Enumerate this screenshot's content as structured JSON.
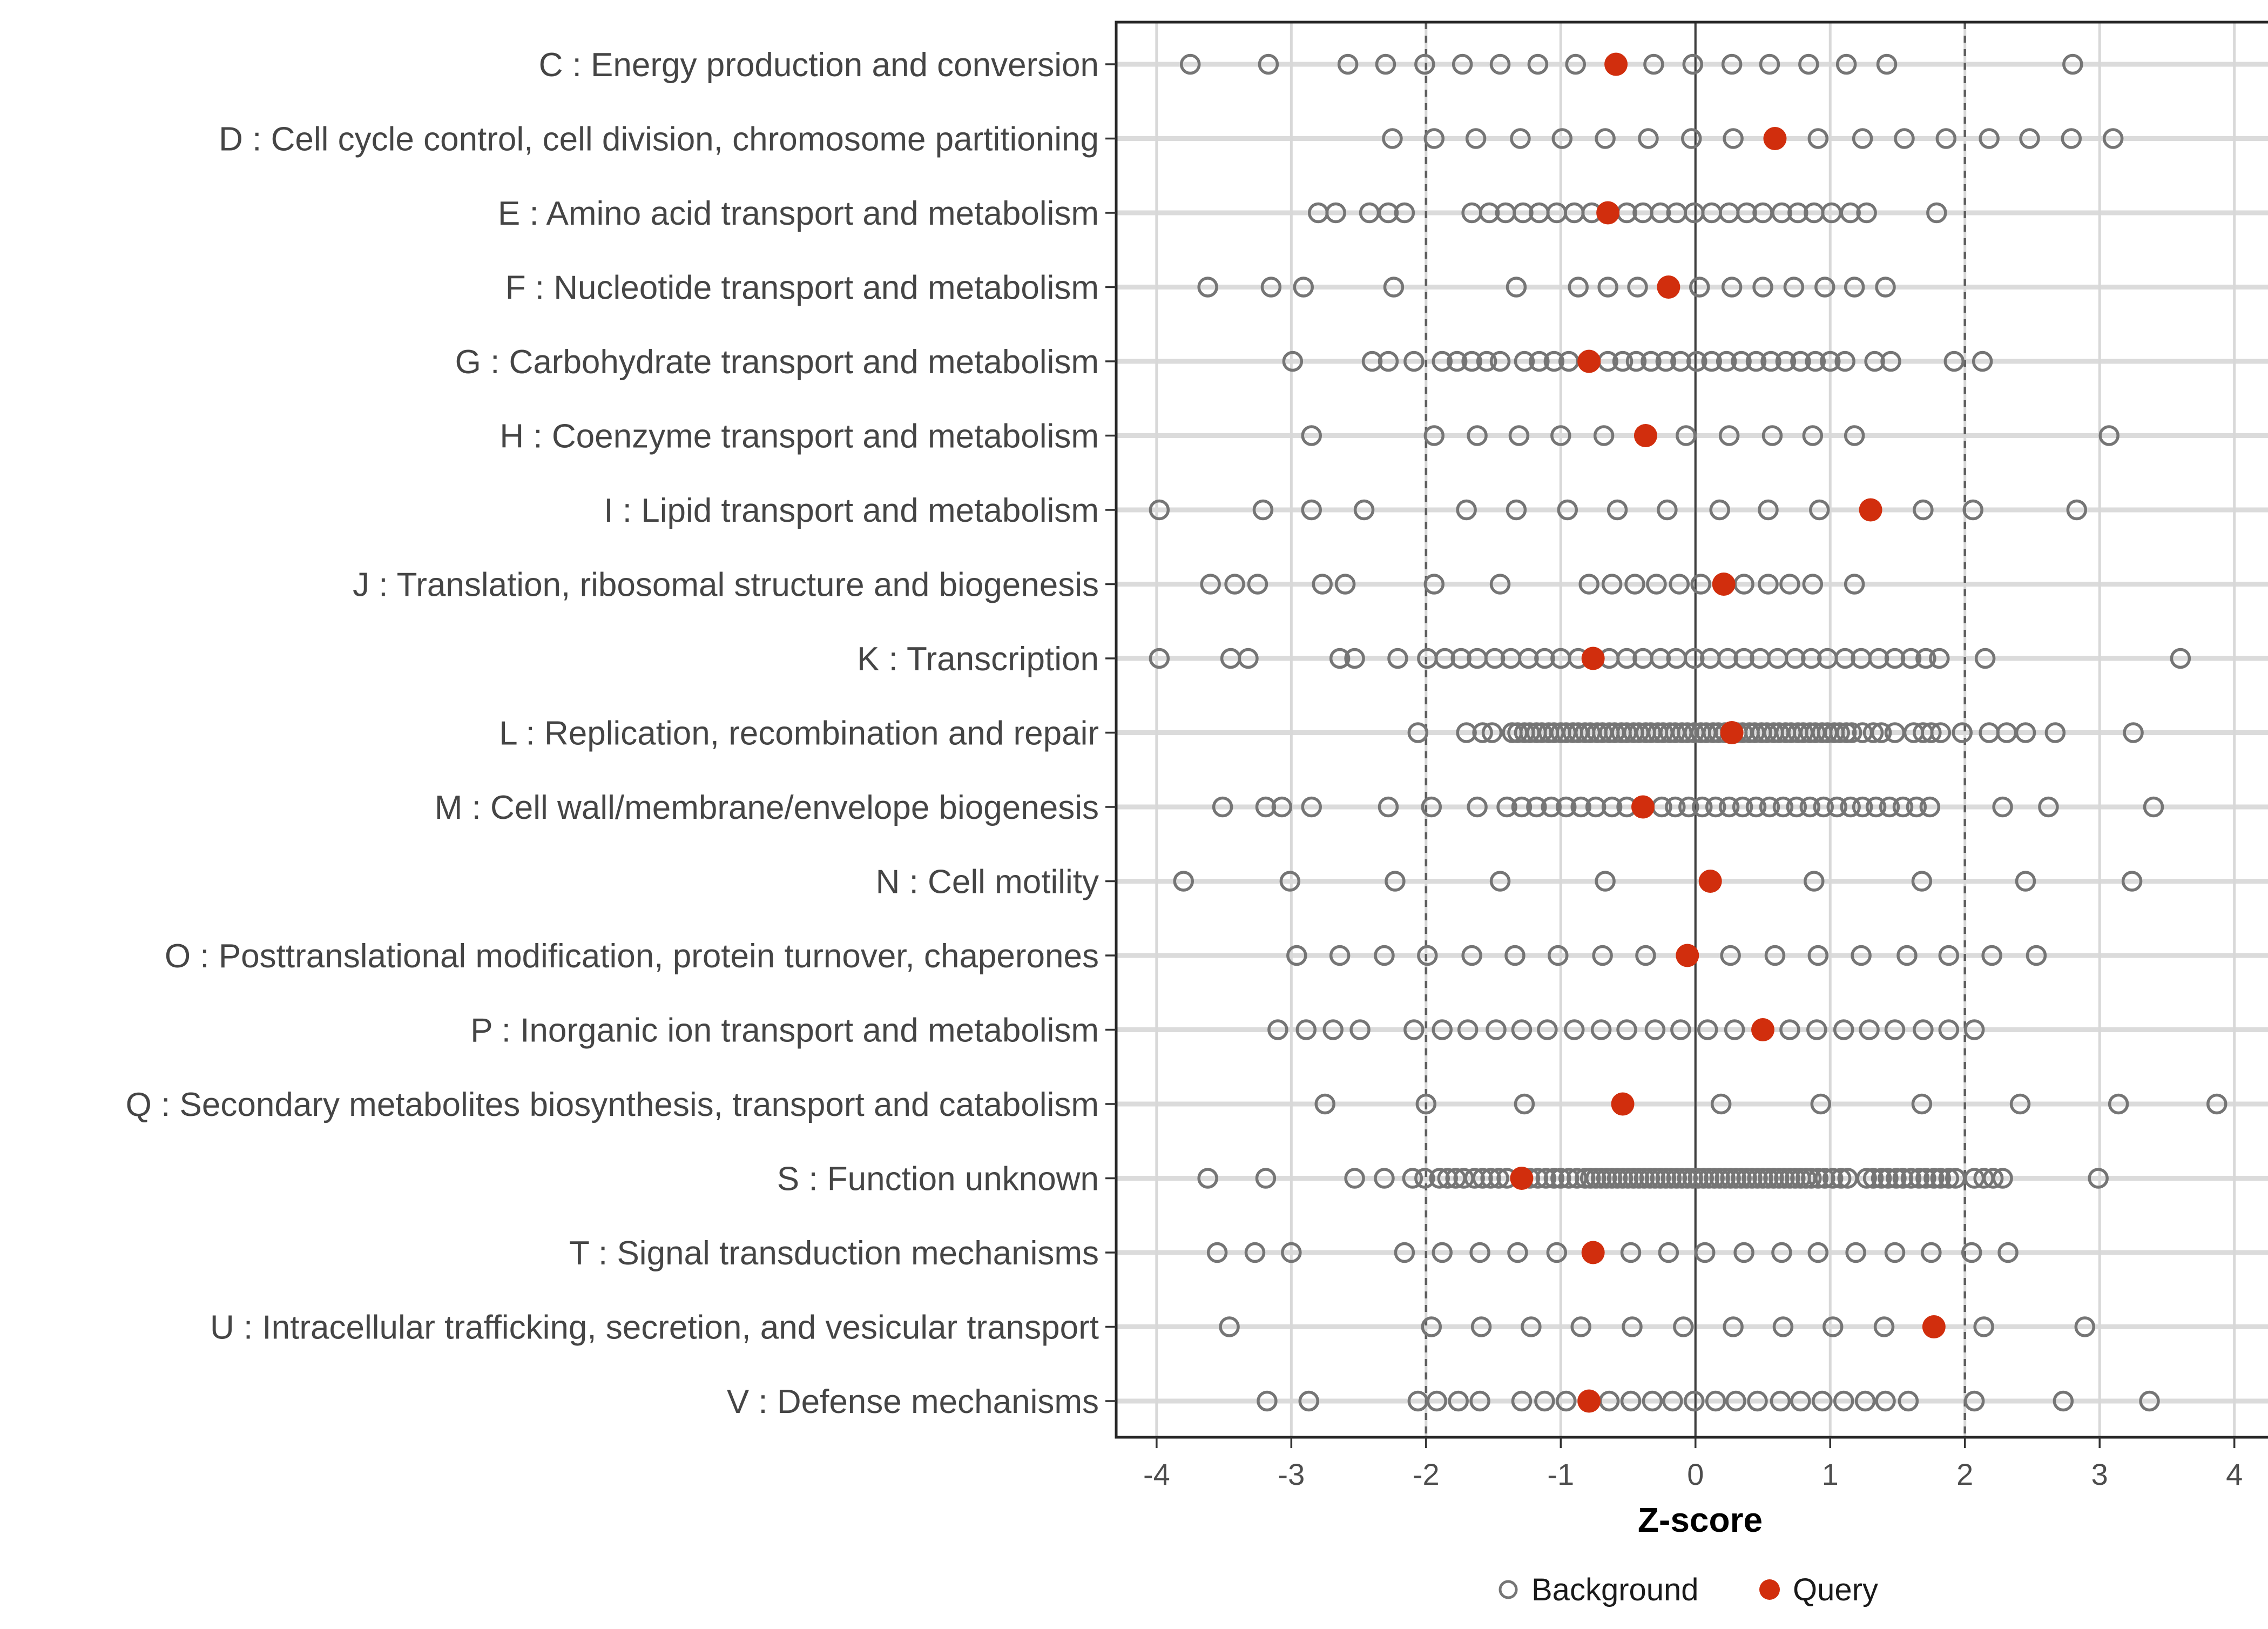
{
  "figure_title": "",
  "axes": {
    "title": "Z-score",
    "x_ticks": [
      -4,
      -3,
      -2,
      -1,
      0,
      1,
      2,
      3,
      4
    ],
    "x_tick_labels": [
      "-4",
      "-3",
      "-2",
      "-1",
      "0",
      "1",
      "2",
      "3",
      "4"
    ],
    "x_range": [
      -4.3,
      4.37
    ],
    "zero_line": 0,
    "dashed_lines": [
      -2,
      2
    ],
    "grid": "on"
  },
  "legend": {
    "position": "bottom",
    "items": [
      {
        "label": "Background",
        "marker": "open-circle",
        "color": "#757575"
      },
      {
        "label": "Query",
        "marker": "filled-circle",
        "color": "#D12E0D"
      }
    ]
  },
  "colors": {
    "query": "#D12E0D",
    "background_stroke": "#757575",
    "row_gridline": "#DBDBDB",
    "x_gridline": "#D8D8D8",
    "dashed_line": "#5F5F5F",
    "zero_line": "#3F3F3F",
    "panel_border": "#262626",
    "tick_mark": "#333333",
    "axis_text": "#4D4D4D",
    "category_text": "#454545",
    "title_text": "#000000",
    "legend_text": "#1A1A1A"
  },
  "chart_data": {
    "type": "scatter",
    "subtype": "horizontal-strip-dotplot",
    "xlabel": "Z-score",
    "ylabel": "",
    "xlim": [
      -4.3,
      4.37
    ],
    "legend_position": "bottom",
    "series_names": [
      "Background",
      "Query"
    ],
    "rows": [
      {
        "label": "C : Energy production and conversion",
        "query": -0.59,
        "background": [
          -3.75,
          -3.17,
          -2.58,
          -2.3,
          -2.01,
          -1.73,
          -1.45,
          -1.17,
          -0.89,
          -0.31,
          -0.02,
          0.27,
          0.55,
          0.84,
          1.12,
          1.42,
          2.8
        ]
      },
      {
        "label": "D : Cell cycle control, cell division, chromosome partitioning",
        "query": 0.59,
        "background": [
          -2.25,
          -1.94,
          -1.63,
          -1.3,
          -0.99,
          -0.67,
          -0.35,
          -0.03,
          0.28,
          0.91,
          1.24,
          1.55,
          1.86,
          2.18,
          2.48,
          2.79,
          3.1
        ]
      },
      {
        "label": "E : Amino acid transport and metabolism",
        "query": -0.65,
        "background": [
          -2.8,
          -2.67,
          -2.42,
          -2.28,
          -2.16,
          -1.66,
          -1.53,
          -1.41,
          -1.28,
          -1.16,
          -1.03,
          -0.9,
          -0.77,
          -0.51,
          -0.39,
          -0.26,
          -0.14,
          -0.01,
          0.12,
          0.25,
          0.38,
          0.5,
          0.64,
          0.76,
          0.88,
          1.01,
          1.15,
          1.27,
          1.79
        ]
      },
      {
        "label": "F : Nucleotide transport and metabolism",
        "query": -0.2,
        "background": [
          -3.62,
          -3.15,
          -2.91,
          -2.24,
          -1.33,
          -0.87,
          -0.65,
          -0.43,
          0.03,
          0.27,
          0.5,
          0.73,
          0.96,
          1.18,
          1.41
        ]
      },
      {
        "label": "G : Carbohydrate transport and metabolism",
        "query": -0.79,
        "background": [
          -2.99,
          -2.4,
          -2.28,
          -2.09,
          -1.88,
          -1.77,
          -1.66,
          -1.55,
          -1.45,
          -1.27,
          -1.16,
          -1.05,
          -0.94,
          -0.65,
          -0.54,
          -0.44,
          -0.33,
          -0.22,
          -0.11,
          0.01,
          0.12,
          0.23,
          0.34,
          0.45,
          0.56,
          0.67,
          0.78,
          0.89,
          1.0,
          1.11,
          1.33,
          1.45,
          1.92,
          2.13
        ]
      },
      {
        "label": "H : Coenzyme transport and metabolism",
        "query": -0.37,
        "background": [
          -2.85,
          -1.94,
          -1.62,
          -1.31,
          -1.0,
          -0.68,
          -0.07,
          0.25,
          0.57,
          0.87,
          1.18,
          3.07
        ]
      },
      {
        "label": "I : Lipid transport and metabolism",
        "query": 1.3,
        "background": [
          -3.98,
          -3.21,
          -2.85,
          -2.46,
          -1.7,
          -1.33,
          -0.95,
          -0.58,
          -0.21,
          0.18,
          0.54,
          0.92,
          1.69,
          2.06,
          2.83
        ]
      },
      {
        "label": "J : Translation, ribosomal structure and biogenesis",
        "query": 0.21,
        "background": [
          -3.6,
          -3.42,
          -3.25,
          -2.77,
          -2.6,
          -1.94,
          -1.45,
          -0.79,
          -0.62,
          -0.45,
          -0.29,
          -0.12,
          0.04,
          0.36,
          0.54,
          0.7,
          0.87,
          1.18
        ]
      },
      {
        "label": "K : Transcription",
        "query": -0.76,
        "background": [
          -3.98,
          -3.45,
          -3.32,
          -2.64,
          -2.53,
          -2.21,
          -1.99,
          -1.86,
          -1.74,
          -1.62,
          -1.49,
          -1.37,
          -1.24,
          -1.12,
          -1.0,
          -0.87,
          -0.64,
          -0.51,
          -0.39,
          -0.26,
          -0.14,
          -0.01,
          0.11,
          0.24,
          0.36,
          0.48,
          0.61,
          0.74,
          0.86,
          0.98,
          1.11,
          1.23,
          1.36,
          1.48,
          1.6,
          1.71,
          1.81,
          2.15,
          3.6
        ]
      },
      {
        "label": "L : Replication, recombination and repair",
        "query": 0.27,
        "background": [
          -2.06,
          -1.7,
          -1.58,
          -1.51,
          -1.36,
          -1.32,
          -1.27,
          -1.23,
          -1.18,
          -1.14,
          -1.09,
          -1.05,
          -1.0,
          -0.96,
          -0.91,
          -0.87,
          -0.82,
          -0.78,
          -0.73,
          -0.69,
          -0.64,
          -0.6,
          -0.55,
          -0.51,
          -0.46,
          -0.42,
          -0.37,
          -0.33,
          -0.28,
          -0.24,
          -0.19,
          -0.15,
          -0.1,
          -0.06,
          -0.01,
          0.04,
          0.08,
          0.13,
          0.17,
          0.22,
          0.26,
          0.31,
          0.35,
          0.4,
          0.44,
          0.49,
          0.53,
          0.58,
          0.62,
          0.67,
          0.71,
          0.76,
          0.8,
          0.85,
          0.89,
          0.94,
          0.98,
          1.03,
          1.07,
          1.12,
          1.16,
          1.24,
          1.32,
          1.38,
          1.48,
          1.62,
          1.69,
          1.75,
          1.82,
          1.98,
          2.18,
          2.31,
          2.45,
          2.67,
          3.25
        ]
      },
      {
        "label": "M : Cell wall/membrane/envelope biogenesis",
        "query": -0.39,
        "background": [
          -3.51,
          -3.19,
          -3.07,
          -2.85,
          -2.28,
          -1.96,
          -1.62,
          -1.4,
          -1.29,
          -1.18,
          -1.07,
          -0.96,
          -0.85,
          -0.74,
          -0.62,
          -0.51,
          -0.25,
          -0.15,
          -0.05,
          0.05,
          0.15,
          0.25,
          0.35,
          0.45,
          0.55,
          0.65,
          0.75,
          0.85,
          0.95,
          1.05,
          1.15,
          1.24,
          1.34,
          1.44,
          1.54,
          1.64,
          1.74,
          2.28,
          2.62,
          3.4
        ]
      },
      {
        "label": "N : Cell motility",
        "query": 0.11,
        "background": [
          -3.8,
          -3.01,
          -2.23,
          -1.45,
          -0.67,
          0.88,
          1.68,
          2.45,
          3.24
        ]
      },
      {
        "label": "O : Posttranslational modification, protein turnover, chaperones",
        "query": -0.06,
        "background": [
          -2.96,
          -2.64,
          -2.31,
          -1.99,
          -1.66,
          -1.34,
          -1.02,
          -0.69,
          -0.37,
          0.26,
          0.59,
          0.91,
          1.23,
          1.57,
          1.88,
          2.2,
          2.53
        ]
      },
      {
        "label": "P : Inorganic ion transport and metabolism",
        "query": 0.5,
        "background": [
          -3.1,
          -2.89,
          -2.69,
          -2.49,
          -2.09,
          -1.88,
          -1.69,
          -1.48,
          -1.29,
          -1.1,
          -0.9,
          -0.7,
          -0.51,
          -0.3,
          -0.11,
          0.09,
          0.29,
          0.7,
          0.9,
          1.1,
          1.29,
          1.48,
          1.69,
          1.88,
          2.07
        ]
      },
      {
        "label": "Q : Secondary metabolites biosynthesis, transport and catabolism",
        "query": -0.54,
        "background": [
          -2.75,
          -2.0,
          -1.27,
          0.19,
          0.93,
          1.68,
          2.41,
          3.14,
          3.87
        ]
      },
      {
        "label": "S : Function unknown",
        "query": -1.29,
        "background": [
          -3.62,
          -3.19,
          -2.53,
          -2.31,
          -2.1,
          -2.01,
          -1.9,
          -1.84,
          -1.78,
          -1.72,
          -1.64,
          -1.58,
          -1.52,
          -1.46,
          -1.4,
          -1.23,
          -1.17,
          -1.11,
          -1.05,
          -1.0,
          -0.94,
          -0.88,
          -0.82,
          -0.78,
          -0.74,
          -0.7,
          -0.66,
          -0.62,
          -0.58,
          -0.54,
          -0.5,
          -0.46,
          -0.42,
          -0.38,
          -0.34,
          -0.3,
          -0.26,
          -0.22,
          -0.18,
          -0.14,
          -0.1,
          -0.06,
          -0.02,
          0.02,
          0.06,
          0.1,
          0.14,
          0.18,
          0.22,
          0.26,
          0.3,
          0.34,
          0.38,
          0.42,
          0.46,
          0.5,
          0.54,
          0.58,
          0.62,
          0.66,
          0.7,
          0.74,
          0.78,
          0.82,
          0.86,
          0.91,
          0.96,
          1.02,
          1.08,
          1.13,
          1.27,
          1.32,
          1.38,
          1.43,
          1.49,
          1.54,
          1.6,
          1.66,
          1.71,
          1.77,
          1.82,
          1.88,
          1.93,
          2.07,
          2.14,
          2.21,
          2.28,
          2.99
        ]
      },
      {
        "label": "T : Signal transduction mechanisms",
        "query": -0.76,
        "background": [
          -3.55,
          -3.27,
          -3.0,
          -2.16,
          -1.88,
          -1.6,
          -1.32,
          -1.03,
          -0.48,
          -0.2,
          0.07,
          0.36,
          0.64,
          0.91,
          1.19,
          1.48,
          1.75,
          2.05,
          2.32
        ]
      },
      {
        "label": "U : Intracellular trafficking, secretion, and vesicular transport",
        "query": 1.77,
        "background": [
          -3.46,
          -1.96,
          -1.59,
          -1.22,
          -0.85,
          -0.47,
          -0.09,
          0.28,
          0.65,
          1.02,
          1.4,
          2.14,
          2.89
        ]
      },
      {
        "label": "V : Defense mechanisms",
        "query": -0.79,
        "background": [
          -3.18,
          -2.87,
          -2.06,
          -1.92,
          -1.76,
          -1.6,
          -1.29,
          -1.12,
          -0.96,
          -0.64,
          -0.48,
          -0.32,
          -0.17,
          -0.01,
          0.15,
          0.3,
          0.46,
          0.63,
          0.78,
          0.94,
          1.1,
          1.26,
          1.41,
          1.58,
          2.07,
          2.73,
          3.37
        ]
      }
    ]
  }
}
